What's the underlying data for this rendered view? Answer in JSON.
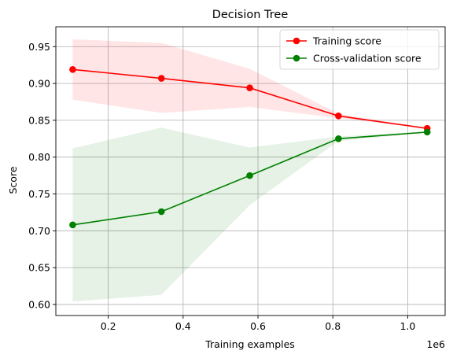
{
  "chart_data": {
    "type": "line",
    "title": "Decision Tree",
    "xlabel": "Training examples",
    "ylabel": "Score",
    "x_scale_label": "1e6",
    "x_scale": 1000000,
    "xlim": [
      60000,
      1100000
    ],
    "ylim": [
      0.585,
      0.977
    ],
    "x_ticks": [
      200000,
      400000,
      600000,
      800000,
      1000000
    ],
    "x_tick_labels": [
      "0.2",
      "0.4",
      "0.6",
      "0.8",
      "1.0"
    ],
    "y_ticks": [
      0.6,
      0.65,
      0.7,
      0.75,
      0.8,
      0.85,
      0.9,
      0.95
    ],
    "y_tick_labels": [
      "0.60",
      "0.65",
      "0.70",
      "0.75",
      "0.80",
      "0.85",
      "0.90",
      "0.95"
    ],
    "grid": true,
    "legend_position": "top-right",
    "x": [
      105000,
      342000,
      578000,
      815000,
      1052000
    ],
    "series": [
      {
        "name": "Training score",
        "color": "#ff0000",
        "band_color": "#ff0000",
        "values": [
          0.919,
          0.907,
          0.894,
          0.856,
          0.839
        ],
        "lower": [
          0.878,
          0.86,
          0.868,
          0.853,
          0.839
        ],
        "upper": [
          0.96,
          0.955,
          0.92,
          0.859,
          0.839
        ]
      },
      {
        "name": "Cross-validation score",
        "color": "#008000",
        "band_color": "#008000",
        "values": [
          0.708,
          0.726,
          0.775,
          0.825,
          0.834
        ],
        "lower": [
          0.604,
          0.613,
          0.735,
          0.822,
          0.833
        ],
        "upper": [
          0.812,
          0.84,
          0.813,
          0.828,
          0.835
        ]
      }
    ]
  }
}
